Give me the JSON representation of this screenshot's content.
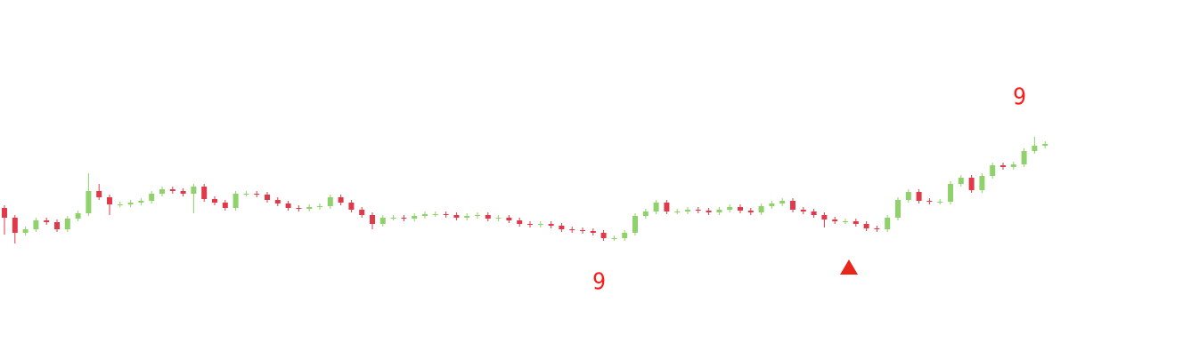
{
  "chart_data": {
    "type": "candlestick",
    "open": [
      170,
      159,
      142,
      146,
      156,
      154,
      146,
      158,
      164,
      189,
      182,
      174,
      174,
      176,
      178,
      186,
      191,
      189,
      186,
      194,
      180,
      176,
      170,
      186,
      186,
      185,
      179,
      175,
      170,
      169,
      171,
      172,
      182,
      176,
      168,
      162,
      152,
      159,
      159,
      158,
      161,
      163,
      163,
      162,
      159,
      161,
      162,
      158,
      159,
      156,
      152,
      151,
      152,
      150,
      146,
      145,
      144,
      142,
      136,
      136,
      142,
      161,
      166,
      176,
      166,
      166,
      168,
      167,
      165,
      168,
      171,
      167,
      165,
      172,
      175,
      178,
      168,
      166,
      162,
      157,
      155,
      155,
      152,
      147,
      146,
      159,
      179,
      188,
      178,
      177,
      177,
      197,
      204,
      190,
      206,
      218,
      216,
      219,
      234,
      240
    ],
    "high": [
      173,
      162,
      149,
      159,
      159,
      157,
      161,
      167,
      209,
      197,
      185,
      177,
      179,
      181,
      189,
      194,
      194,
      192,
      197,
      197,
      183,
      179,
      189,
      189,
      189,
      188,
      182,
      178,
      173,
      174,
      175,
      185,
      185,
      179,
      171,
      165,
      162,
      162,
      162,
      164,
      166,
      166,
      166,
      165,
      164,
      165,
      165,
      162,
      162,
      159,
      155,
      155,
      155,
      153,
      149,
      148,
      147,
      145,
      139,
      145,
      164,
      169,
      179,
      179,
      169,
      171,
      171,
      170,
      171,
      174,
      174,
      170,
      175,
      178,
      181,
      181,
      171,
      169,
      165,
      160,
      158,
      158,
      155,
      150,
      162,
      182,
      191,
      191,
      181,
      180,
      200,
      207,
      207,
      209,
      221,
      221,
      222,
      237,
      250,
      245
    ],
    "low": [
      140,
      130,
      139,
      143,
      151,
      143,
      143,
      155,
      161,
      179,
      162,
      171,
      171,
      173,
      175,
      183,
      186,
      183,
      164,
      177,
      173,
      167,
      167,
      183,
      182,
      176,
      172,
      167,
      166,
      166,
      168,
      169,
      173,
      165,
      159,
      146,
      149,
      156,
      155,
      155,
      158,
      160,
      159,
      156,
      156,
      158,
      155,
      155,
      153,
      149,
      148,
      148,
      147,
      143,
      142,
      141,
      139,
      133,
      133,
      133,
      139,
      158,
      163,
      163,
      163,
      163,
      164,
      162,
      162,
      165,
      164,
      162,
      162,
      169,
      172,
      165,
      163,
      159,
      148,
      152,
      152,
      149,
      144,
      143,
      143,
      156,
      176,
      175,
      174,
      174,
      174,
      194,
      187,
      187,
      203,
      213,
      213,
      216,
      231,
      237
    ],
    "close": [
      159,
      142,
      146,
      156,
      154,
      146,
      158,
      164,
      189,
      182,
      174,
      174,
      176,
      178,
      186,
      191,
      189,
      186,
      194,
      180,
      176,
      170,
      186,
      186,
      185,
      179,
      175,
      170,
      169,
      171,
      172,
      182,
      176,
      168,
      162,
      152,
      159,
      159,
      158,
      161,
      163,
      163,
      162,
      159,
      161,
      162,
      158,
      159,
      156,
      152,
      151,
      152,
      150,
      146,
      145,
      144,
      142,
      136,
      136,
      142,
      161,
      166,
      176,
      166,
      166,
      168,
      167,
      165,
      168,
      171,
      167,
      165,
      172,
      175,
      178,
      168,
      166,
      162,
      157,
      155,
      155,
      152,
      147,
      146,
      159,
      179,
      188,
      178,
      177,
      177,
      197,
      204,
      190,
      206,
      218,
      216,
      219,
      234,
      240,
      242
    ],
    "up_color": "#8fd16a",
    "down_color": "#e03a4a",
    "ylim": [
      0,
      404
    ],
    "annotations": [
      {
        "text": "9",
        "index": 57,
        "position": "below",
        "color": "#ff1a1a"
      },
      {
        "text": "9",
        "index": 97,
        "position": "above",
        "color": "#ff1a1a"
      }
    ],
    "markers": [
      {
        "index": 80,
        "shape": "triangle-up",
        "color": "#e8261c"
      }
    ]
  }
}
